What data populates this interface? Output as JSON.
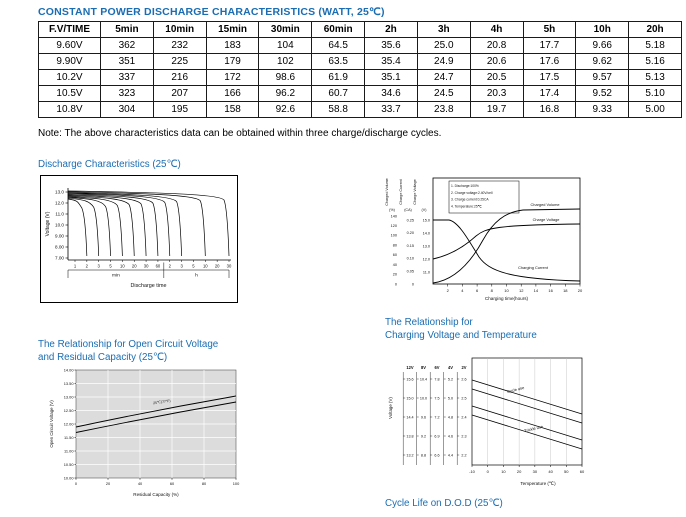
{
  "accent_color": "#1a6db3",
  "page": {
    "title": "CONSTANT POWER DISCHARGE CHARACTERISTICS (WATT, 25℃)",
    "note": "Note: The above characteristics data can be obtained within three charge/discharge cycles."
  },
  "table": {
    "headers": [
      "F.V/TIME",
      "5min",
      "10min",
      "15min",
      "30min",
      "60min",
      "2h",
      "3h",
      "4h",
      "5h",
      "10h",
      "20h"
    ],
    "rows": [
      {
        "label": "9.60V",
        "values": [
          "362",
          "232",
          "183",
          "104",
          "64.5",
          "35.6",
          "25.0",
          "20.8",
          "17.7",
          "9.66",
          "5.18"
        ]
      },
      {
        "label": "9.90V",
        "values": [
          "351",
          "225",
          "179",
          "102",
          "63.5",
          "35.4",
          "24.9",
          "20.6",
          "17.6",
          "9.62",
          "5.16"
        ]
      },
      {
        "label": "10.2V",
        "values": [
          "337",
          "216",
          "172",
          "98.6",
          "61.9",
          "35.1",
          "24.7",
          "20.5",
          "17.5",
          "9.57",
          "5.13"
        ]
      },
      {
        "label": "10.5V",
        "values": [
          "323",
          "207",
          "166",
          "96.2",
          "60.7",
          "34.6",
          "24.5",
          "20.3",
          "17.4",
          "9.52",
          "5.10"
        ]
      },
      {
        "label": "10.8V",
        "values": [
          "304",
          "195",
          "158",
          "92.6",
          "58.8",
          "33.7",
          "23.8",
          "19.7",
          "16.8",
          "9.33",
          "5.00"
        ]
      }
    ]
  },
  "headings": {
    "discharge": "Discharge Characteristics (25℃)",
    "ocv_line1": "The Relationship for Open Circuit Voltage",
    "ocv_line2": "and Residual Capacity (25℃)",
    "cvt_line1": "The Relationship for",
    "cvt_line2": "Charging Voltage and Temperature",
    "cycle_life": "Cycle Life on D.O.D (25℃)"
  },
  "chart_data": [
    {
      "type": "line",
      "title": "Discharge Characteristics (25℃)",
      "ylabel": "Voltage (V)",
      "xlabel": "Discharge time",
      "yticks": [
        "13.0",
        "12.0",
        "11.0",
        "10.0",
        "9.00",
        "8.00",
        "7.00"
      ],
      "x_min_ticks": [
        "1",
        "2",
        "3",
        "5",
        "10",
        "20",
        "30",
        "60"
      ],
      "x_h_ticks": [
        "2",
        "3",
        "5",
        "10",
        "20",
        "30"
      ],
      "x_unit_labels": [
        "min",
        "h"
      ],
      "ylim": [
        7.0,
        13.5
      ],
      "description": "Family of constant-power discharge curves; terminal voltage holds near 13V then falls to cutoff, with heavier loads dropping at shorter times.",
      "curve_drop_ticks": [
        1,
        2,
        3,
        4,
        5,
        6,
        7,
        8,
        9,
        11,
        13
      ]
    },
    {
      "type": "line",
      "title": "",
      "xlabel": "Charging time(hours)",
      "left_axes": [
        {
          "label": "Charged Volume",
          "unit": "(%)",
          "ticks": [
            "140",
            "120",
            "100",
            "80",
            "60",
            "40",
            "20",
            "0"
          ]
        },
        {
          "label": "Charge Current",
          "unit": "(CA)",
          "ticks": [
            "0.25",
            "0.20",
            "0.15",
            "0.10",
            "0.05",
            "0"
          ]
        },
        {
          "label": "Charge Voltage",
          "unit": "(V)",
          "ticks": [
            "15.0",
            "14.0",
            "13.0",
            "12.0",
            "11.0"
          ]
        }
      ],
      "xticks": [
        "2",
        "4",
        "6",
        "8",
        "10",
        "12",
        "14",
        "16",
        "18",
        "20"
      ],
      "notes": [
        "1. Discharge:100%",
        "2. Charge voltage:2.40V/cell",
        "3. Charge current:0.25CA",
        "4. Temperature:25℃"
      ],
      "curve_labels": [
        "Charged Volume",
        "Charge Voltage",
        "Charging Current"
      ],
      "description": "Charged volume rises to ~100%+, charge voltage climbs to plateau, charging current decays toward zero over 20 hours."
    },
    {
      "type": "line",
      "title": "The Relationship for Open Circuit Voltage and Residual Capacity (25℃)",
      "ylabel": "Open Circuit Voltage (V)",
      "xlabel": "Residual Capacity (%)",
      "yticks": [
        "14.00",
        "13.50",
        "13.00",
        "12.50",
        "12.00",
        "11.50",
        "11.00",
        "10.50",
        "10.00"
      ],
      "xticks": [
        "0",
        "20",
        "40",
        "60",
        "80",
        "100"
      ],
      "annotation": "25℃(77°F)",
      "series": [
        {
          "name": "ocv-band-upper",
          "x": [
            0,
            100
          ],
          "y": [
            12.0,
            13.1
          ]
        },
        {
          "name": "ocv-band-lower",
          "x": [
            0,
            100
          ],
          "y": [
            11.85,
            12.95
          ]
        }
      ]
    },
    {
      "type": "line",
      "title": "The Relationship for Charging Voltage and Temperature",
      "ylabel": "Voltage (V)",
      "xlabel": "Temperature (℃)",
      "column_headers": [
        "12V",
        "8V",
        "6V",
        "4V",
        "2V"
      ],
      "scale_rows": [
        [
          "15.6",
          "10.4",
          "7.8",
          "5.2",
          "2.6"
        ],
        [
          "15.0",
          "10.0",
          "7.5",
          "5.0",
          "2.5"
        ],
        [
          "14.4",
          "9.6",
          "7.2",
          "4.8",
          "2.4"
        ],
        [
          "13.8",
          "9.2",
          "6.9",
          "4.6",
          "2.3"
        ],
        [
          "13.2",
          "8.8",
          "6.6",
          "4.4",
          "2.2"
        ]
      ],
      "xticks": [
        "-10",
        "0",
        "10",
        "20",
        "30",
        "40",
        "50",
        "60"
      ],
      "bands": [
        {
          "name": "Cycle use"
        },
        {
          "name": "Trickle use"
        }
      ],
      "description": "Recommended charging voltage decreases as temperature rises; separate bands for cycle use and trickle use."
    }
  ]
}
